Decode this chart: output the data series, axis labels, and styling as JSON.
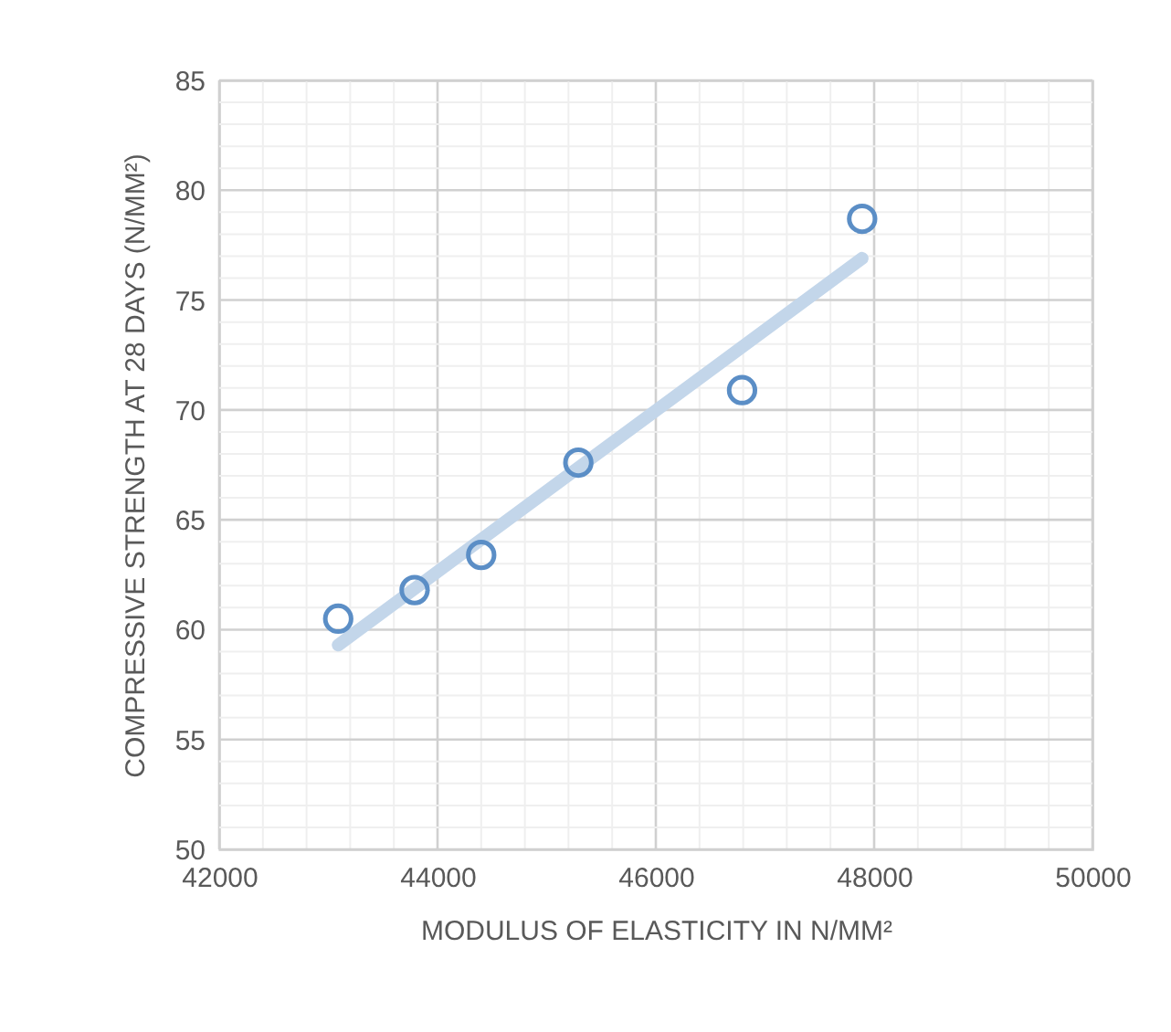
{
  "chart_data": {
    "type": "scatter",
    "xlabel": "MODULUS OF ELASTICITY IN N/MM²",
    "ylabel": "COMPRESSIVE STRENGTH AT 28 DAYS (N/MM²)",
    "grid": true,
    "xlim": [
      42000,
      50000
    ],
    "ylim": [
      50,
      85
    ],
    "xticks": [
      42000,
      {
        "value": 42400,
        "label": null
      },
      {
        "value": 42800,
        "label": null
      },
      {
        "value": 43200,
        "label": null
      },
      {
        "value": 43600,
        "label": null
      },
      44000,
      {
        "value": 44400,
        "label": null
      },
      {
        "value": 44800,
        "label": null
      },
      {
        "value": 45200,
        "label": null
      },
      {
        "value": 45600,
        "label": null
      },
      46000,
      {
        "value": 46400,
        "label": null
      },
      {
        "value": 46800,
        "label": null
      },
      {
        "value": 47200,
        "label": null
      },
      {
        "value": 47600,
        "label": null
      },
      48000,
      {
        "value": 48400,
        "label": null
      },
      {
        "value": 48800,
        "label": null
      },
      {
        "value": 49200,
        "label": null
      },
      {
        "value": 49600,
        "label": null
      },
      50000
    ],
    "yticks": [
      50,
      {
        "value": 51,
        "label": null
      },
      {
        "value": 52,
        "label": null
      },
      {
        "value": 53,
        "label": null
      },
      {
        "value": 54,
        "label": null
      },
      55,
      {
        "value": 56,
        "label": null
      },
      {
        "value": 57,
        "label": null
      },
      {
        "value": 58,
        "label": null
      },
      {
        "value": 59,
        "label": null
      },
      60,
      {
        "value": 61,
        "label": null
      },
      {
        "value": 62,
        "label": null
      },
      {
        "value": 63,
        "label": null
      },
      {
        "value": 64,
        "label": null
      },
      65,
      {
        "value": 66,
        "label": null
      },
      {
        "value": 67,
        "label": null
      },
      {
        "value": 68,
        "label": null
      },
      {
        "value": 69,
        "label": null
      },
      70,
      {
        "value": 71,
        "label": null
      },
      {
        "value": 72,
        "label": null
      },
      {
        "value": 73,
        "label": null
      },
      {
        "value": 74,
        "label": null
      },
      75,
      {
        "value": 76,
        "label": null
      },
      {
        "value": 77,
        "label": null
      },
      {
        "value": 78,
        "label": null
      },
      {
        "value": 79,
        "label": null
      },
      80,
      {
        "value": 81,
        "label": null
      },
      {
        "value": 82,
        "label": null
      },
      {
        "value": 83,
        "label": null
      },
      {
        "value": 84,
        "label": null
      },
      85
    ],
    "series": [
      {
        "type": "line",
        "marker": "none",
        "color": "#c3d6ea",
        "x": [
          43090,
          47890
        ],
        "values": [
          59.3,
          76.9
        ]
      },
      {
        "marker": "circle",
        "color": "#5b8ec6",
        "x": [
          43090,
          43790,
          44400,
          45290,
          46790,
          47890
        ],
        "values": [
          60.5,
          61.8,
          63.4,
          67.6,
          70.9,
          78.7
        ]
      }
    ]
  }
}
